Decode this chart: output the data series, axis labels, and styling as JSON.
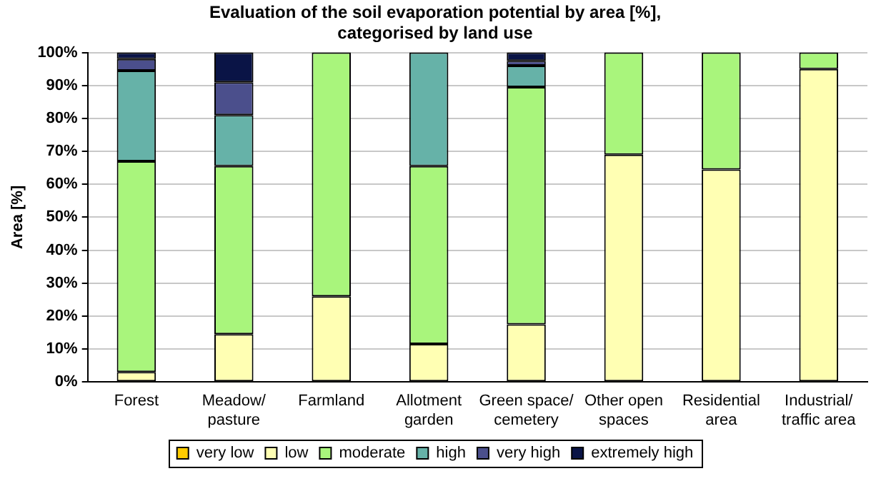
{
  "chart_data": {
    "type": "bar",
    "stacked": true,
    "title": [
      "Evaluation of the soil evaporation potential by area [%],",
      "categorised by land use"
    ],
    "ylabel": "Area [%]",
    "categories": [
      "Forest",
      "Meadow/ pasture",
      "Farmland",
      "Allotment garden",
      "Green space/ cemetery",
      "Other open spaces",
      "Residential area",
      "Industrial/ traffic area"
    ],
    "series": [
      {
        "name": "very low",
        "color": "#ffcc00",
        "values": [
          null,
          null,
          null,
          null,
          null,
          null,
          null,
          null
        ]
      },
      {
        "name": "low",
        "color": "#ffffb3",
        "values": [
          3,
          14.5,
          26,
          11.5,
          17.5,
          69,
          64.5,
          95
        ]
      },
      {
        "name": "moderate",
        "color": "#a9f57c",
        "values": [
          64,
          51,
          74,
          54,
          72,
          31,
          35.5,
          5
        ]
      },
      {
        "name": "high",
        "color": "#66b2a8",
        "values": [
          27.5,
          15.5,
          null,
          34.5,
          6.5,
          null,
          null,
          null
        ]
      },
      {
        "name": "very high",
        "color": "#4b4f8c",
        "values": [
          3.5,
          10,
          null,
          null,
          1.5,
          null,
          null,
          null
        ]
      },
      {
        "name": "extremely high",
        "color": "#0a1446",
        "values": [
          2,
          9,
          null,
          null,
          2.5,
          null,
          null,
          null
        ]
      }
    ],
    "ylim": [
      0,
      100
    ],
    "yticks": [
      {
        "value": 0,
        "label": "0%"
      },
      {
        "value": 10,
        "label": "10%"
      },
      {
        "value": 20,
        "label": "20%"
      },
      {
        "value": 30,
        "label": "30%"
      },
      {
        "value": 40,
        "label": "40%"
      },
      {
        "value": 50,
        "label": "50%"
      },
      {
        "value": 60,
        "label": "60%"
      },
      {
        "value": 70,
        "label": "70%"
      },
      {
        "value": 80,
        "label": "80%"
      },
      {
        "value": 90,
        "label": "90%"
      },
      {
        "value": 100,
        "label": "100%"
      }
    ],
    "grid": "y",
    "legend": "bottom"
  }
}
